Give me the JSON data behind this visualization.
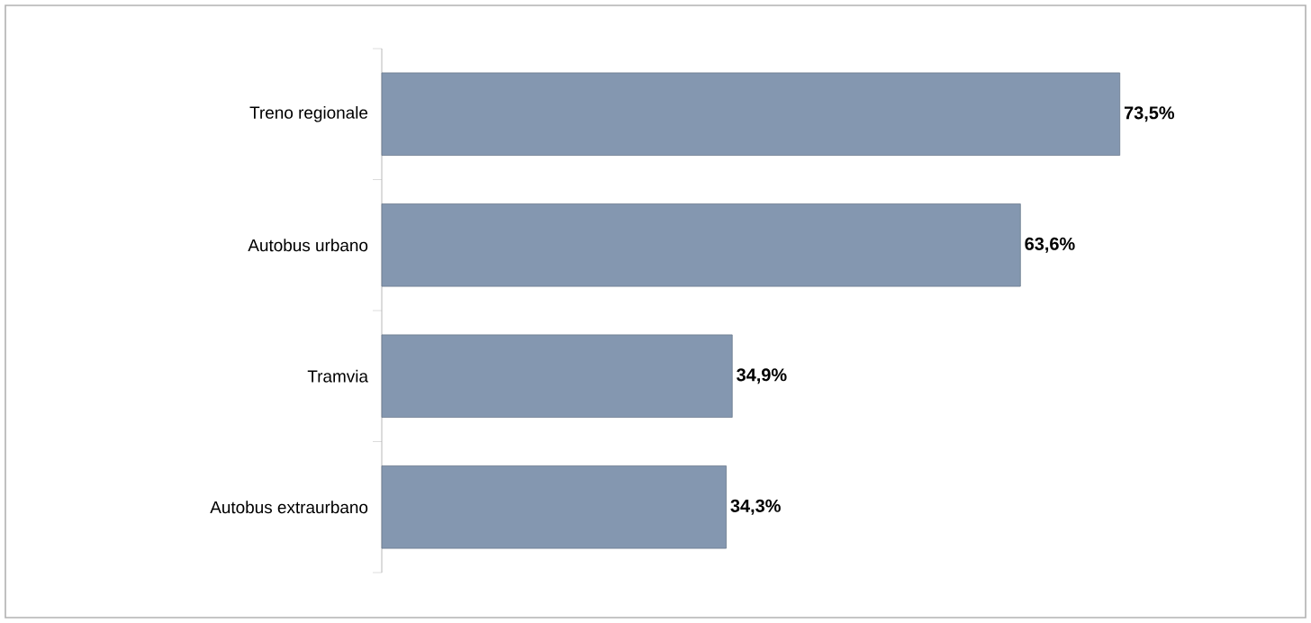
{
  "chart_data": {
    "type": "bar",
    "orientation": "horizontal",
    "categories": [
      "Treno regionale",
      "Autobus urbano",
      "Tramvia",
      "Autobus extraurbano"
    ],
    "values": [
      73.5,
      63.6,
      34.9,
      34.3
    ],
    "value_labels": [
      "73,5%",
      "63,6%",
      "34,9%",
      "34,3%"
    ],
    "color": "#8497b0"
  }
}
